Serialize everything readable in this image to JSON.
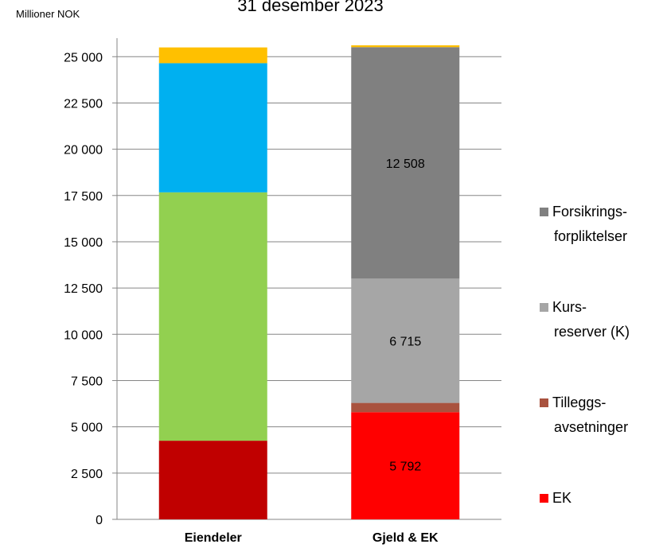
{
  "chart_data": {
    "type": "stacked_bar",
    "title": "31 desember 2023",
    "y_axis_label": "Millioner NOK",
    "categories": [
      "Eiendeler",
      "Gjeld & EK"
    ],
    "ylim": [
      0,
      26000
    ],
    "yticks": [
      0,
      {
        "value": 2500,
        "label": "2 500"
      },
      {
        "value": 5000,
        "label": "5 000"
      },
      {
        "value": 7500,
        "label": "7 500"
      },
      {
        "value": 10000,
        "label": "10 000"
      },
      {
        "value": 12500,
        "label": "12 500"
      },
      {
        "value": 15000,
        "label": "15 000"
      },
      {
        "value": 17500,
        "label": "17 500"
      },
      {
        "value": 20000,
        "label": "20 000"
      },
      {
        "value": 22500,
        "label": "22 500"
      },
      {
        "value": 25000,
        "label": "25 000"
      }
    ],
    "grid": true,
    "legend": "right",
    "series": [
      {
        "color": "#c00000",
        "values": [
          4250,
          null
        ]
      },
      {
        "color": "#92d050",
        "values": [
          13420,
          null
        ]
      },
      {
        "color": "#00b0f0",
        "values": [
          6980,
          null
        ]
      },
      {
        "name": "EK",
        "color": "#ff0000",
        "values": [
          null,
          5792
        ],
        "value_labels": [
          null,
          "5 792"
        ]
      },
      {
        "name": "Tilleggs-\navsetninger",
        "color": "#a9523e",
        "values": [
          null,
          500
        ]
      },
      {
        "name": "Kurs-\nreserver (K)",
        "color": "#a6a6a6",
        "values": [
          null,
          6715
        ],
        "value_labels": [
          null,
          "6 715"
        ]
      },
      {
        "name": "Forsikrings-\nforpliktelser",
        "color": "#808080",
        "values": [
          null,
          12508
        ],
        "value_labels": [
          null,
          "12 508"
        ]
      },
      {
        "color": "#ffc000",
        "values": [
          850,
          100
        ]
      }
    ]
  }
}
